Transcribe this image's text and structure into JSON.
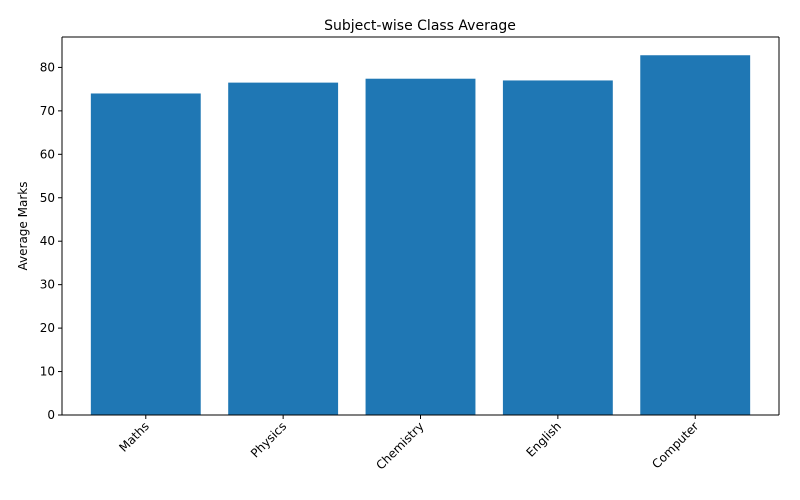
{
  "chart_data": {
    "type": "bar",
    "title": "Subject-wise Class Average",
    "xlabel": "",
    "ylabel": "Average Marks",
    "categories": [
      "Maths",
      "Physics",
      "Chemistry",
      "English",
      "Computer"
    ],
    "values": [
      74.0,
      76.5,
      77.4,
      77.0,
      82.8
    ],
    "ylim": [
      0,
      87
    ],
    "yticks": [
      0,
      10,
      20,
      30,
      40,
      50,
      60,
      70,
      80
    ],
    "xtick_rotation": 45,
    "grid": false,
    "legend": "none",
    "bar_color": "#1f77b4"
  }
}
